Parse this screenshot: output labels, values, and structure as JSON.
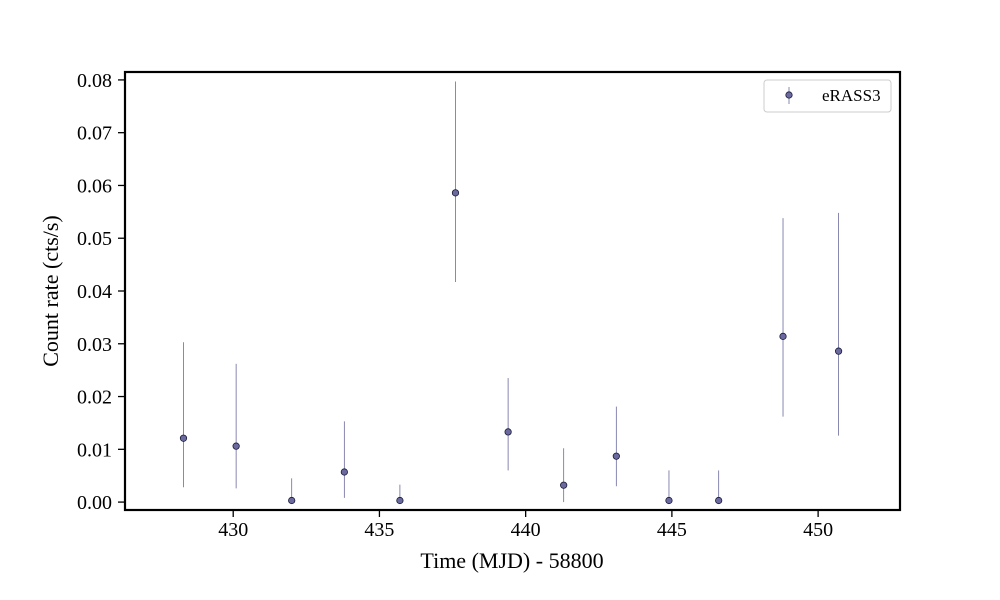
{
  "chart_data": {
    "type": "scatter",
    "title": "",
    "xlabel": "Time (MJD) - 58800",
    "ylabel": "Count rate (cts/s)",
    "xlim": [
      426.3,
      452.8
    ],
    "ylim": [
      -0.0015,
      0.0815
    ],
    "xticks": [
      430,
      435,
      440,
      445,
      450
    ],
    "xtick_labels": [
      "430",
      "435",
      "440",
      "445",
      "450"
    ],
    "yticks": [
      0.0,
      0.01,
      0.02,
      0.03,
      0.04,
      0.05,
      0.06,
      0.07,
      0.08
    ],
    "ytick_labels": [
      "0.00",
      "0.01",
      "0.02",
      "0.03",
      "0.04",
      "0.05",
      "0.06",
      "0.07",
      "0.08"
    ],
    "grid": false,
    "legend_position": "upper right",
    "marker_color": "#6b6a9e",
    "series": [
      {
        "name": "eRASS3",
        "points": [
          {
            "x": 428.3,
            "y": 0.0121,
            "ylo": 0.0028,
            "yhi": 0.0303
          },
          {
            "x": 430.1,
            "y": 0.0106,
            "ylo": 0.0026,
            "yhi": 0.0262
          },
          {
            "x": 432.0,
            "y": 0.0003,
            "ylo": 0.0,
            "yhi": 0.0045
          },
          {
            "x": 433.8,
            "y": 0.0057,
            "ylo": 0.0008,
            "yhi": 0.0153
          },
          {
            "x": 435.7,
            "y": 0.0003,
            "ylo": 0.0,
            "yhi": 0.0033
          },
          {
            "x": 437.6,
            "y": 0.0586,
            "ylo": 0.0417,
            "yhi": 0.0797
          },
          {
            "x": 439.4,
            "y": 0.0133,
            "ylo": 0.006,
            "yhi": 0.0235
          },
          {
            "x": 441.3,
            "y": 0.0032,
            "ylo": 0.0,
            "yhi": 0.0102
          },
          {
            "x": 443.1,
            "y": 0.0087,
            "ylo": 0.003,
            "yhi": 0.0181
          },
          {
            "x": 444.9,
            "y": 0.0003,
            "ylo": 0.0,
            "yhi": 0.006
          },
          {
            "x": 446.6,
            "y": 0.0003,
            "ylo": 0.0,
            "yhi": 0.006
          },
          {
            "x": 448.8,
            "y": 0.0314,
            "ylo": 0.0162,
            "yhi": 0.0538
          },
          {
            "x": 450.7,
            "y": 0.0286,
            "ylo": 0.0126,
            "yhi": 0.0548
          }
        ]
      }
    ]
  }
}
